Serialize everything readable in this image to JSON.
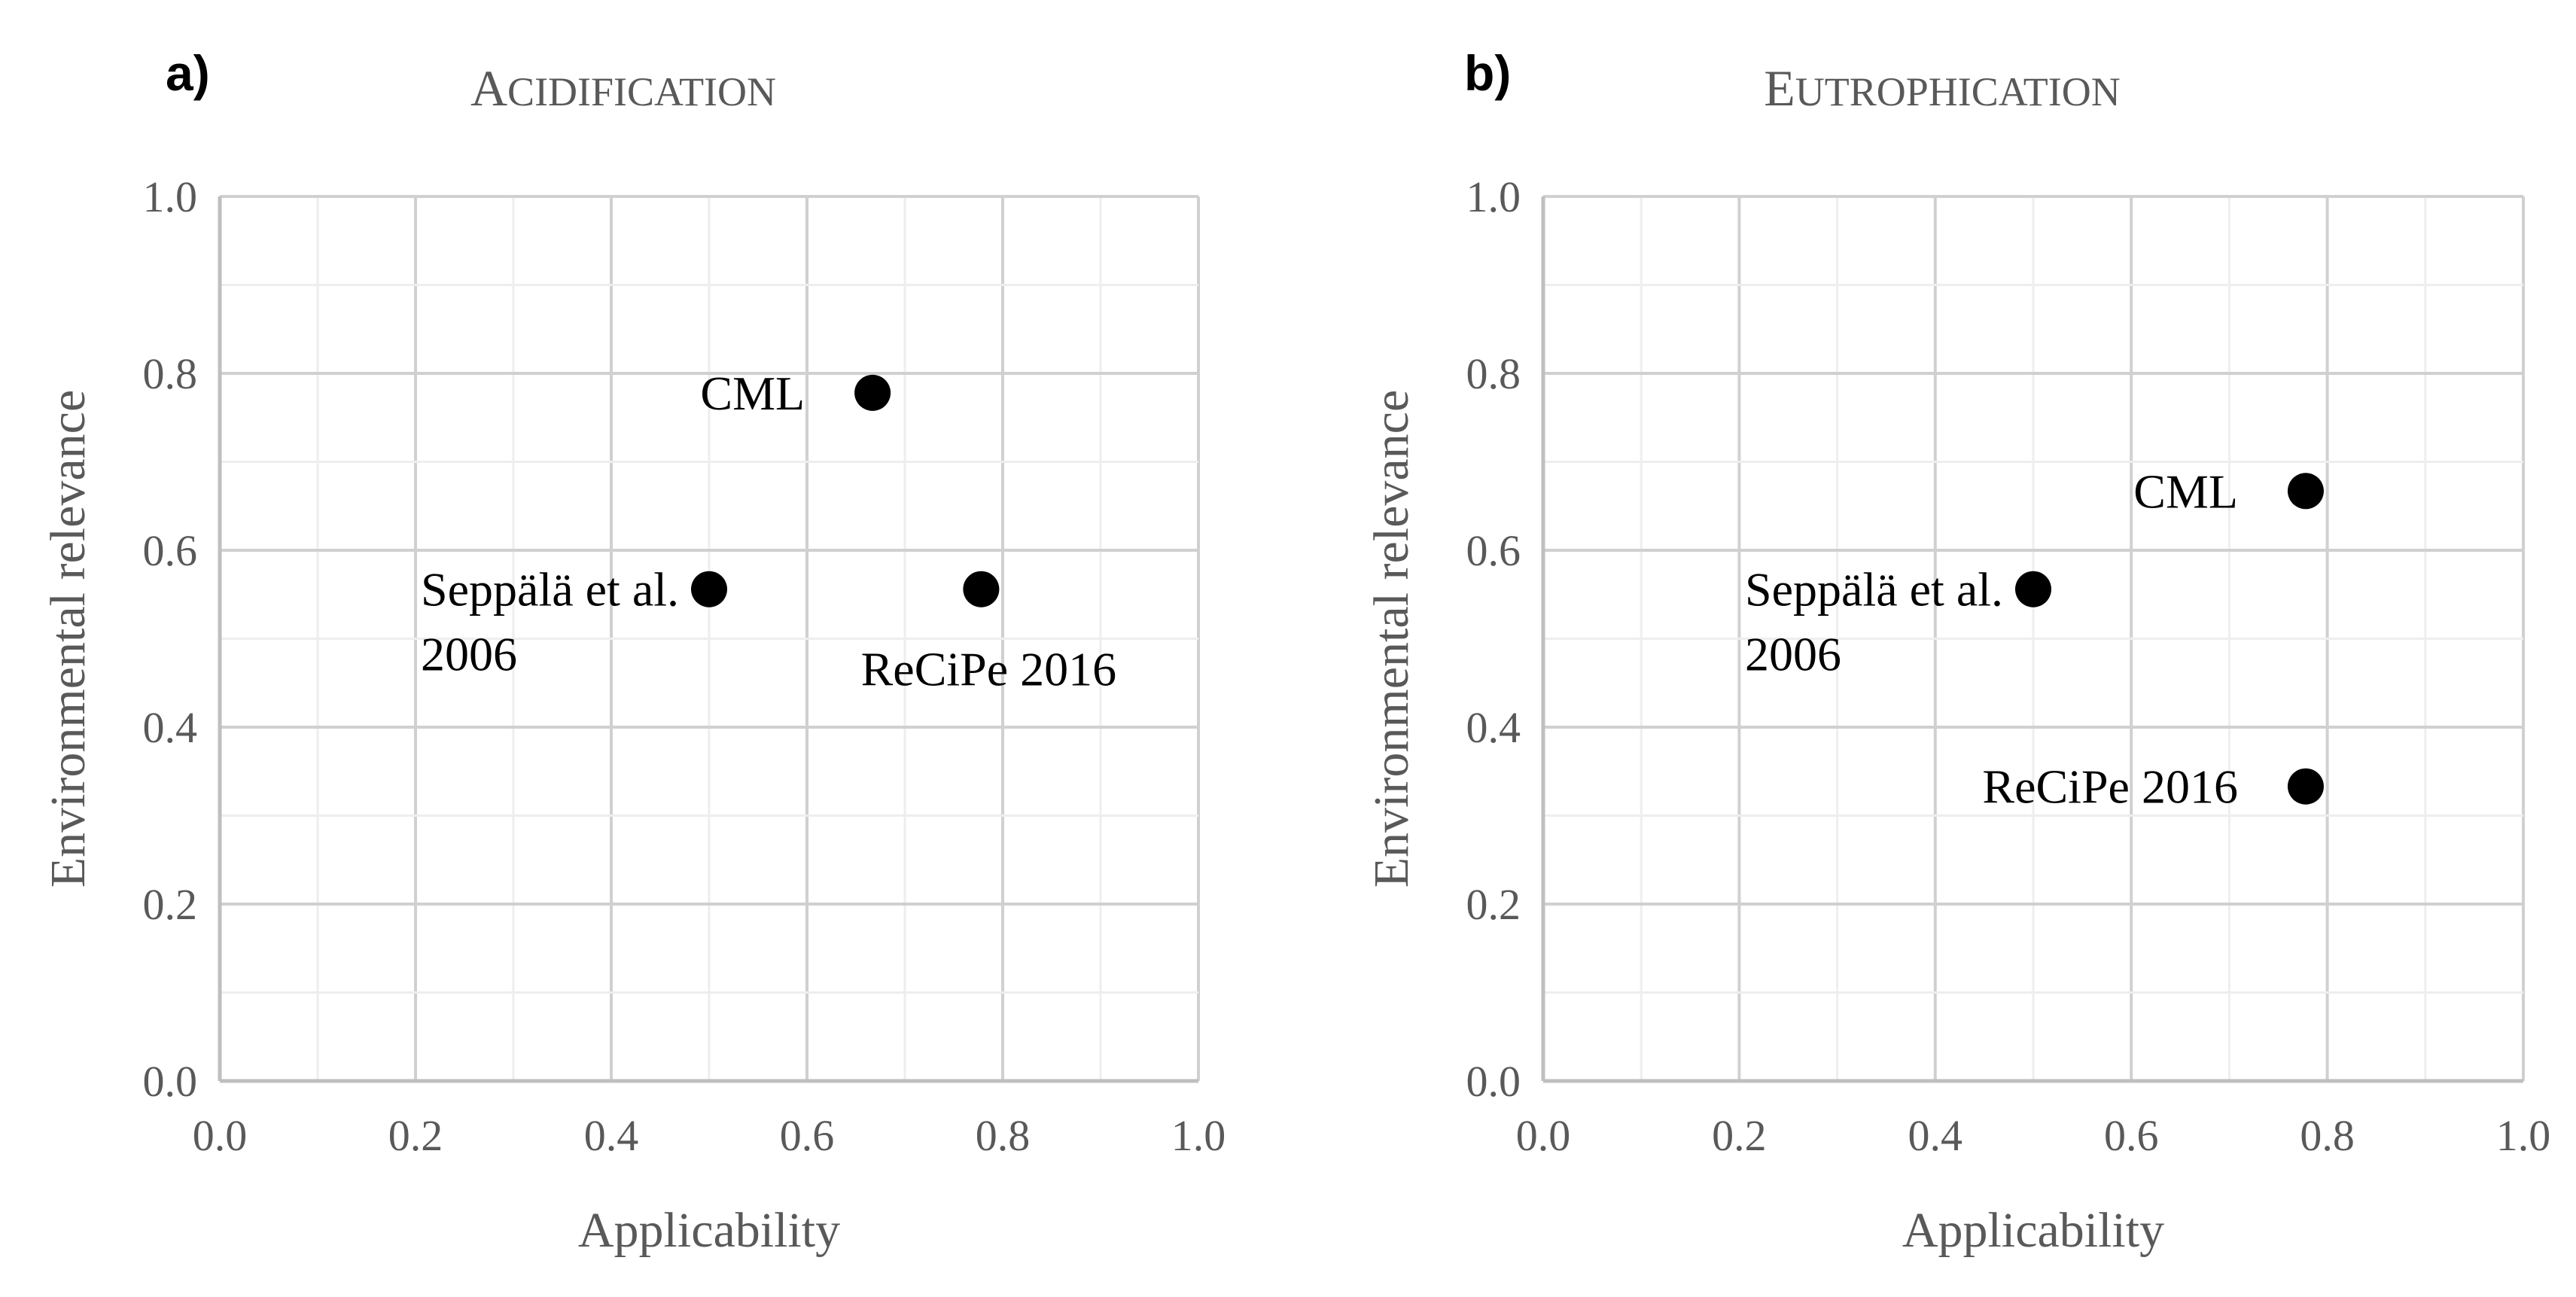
{
  "chart_data": [
    {
      "type": "scatter",
      "panel_label": "a)",
      "title": "Acidification",
      "xlabel": "Applicability",
      "ylabel": "Environmental relevance",
      "xlim": [
        0,
        1
      ],
      "ylim": [
        0,
        1
      ],
      "major_ticks": [
        "0.0",
        "0.2",
        "0.4",
        "0.6",
        "0.8",
        "1.0"
      ],
      "grid": true,
      "marker_color": "#000000",
      "points": [
        {
          "name": "CML",
          "label_lines": [
            "CML"
          ],
          "label_position": "left",
          "x": 0.667,
          "y": 0.778
        },
        {
          "name": "Seppälä et al. 2006",
          "label_lines": [
            "Seppälä et al.",
            "2006"
          ],
          "label_position": "left",
          "x": 0.5,
          "y": 0.556
        },
        {
          "name": "ReCiPe 2016",
          "label_lines": [
            "ReCiPe 2016"
          ],
          "label_position": "below",
          "x": 0.778,
          "y": 0.556
        }
      ]
    },
    {
      "type": "scatter",
      "panel_label": "b)",
      "title": "Eutrophication",
      "xlabel": "Applicability",
      "ylabel": "Environmental relevance",
      "xlim": [
        0,
        1
      ],
      "ylim": [
        0,
        1
      ],
      "major_ticks": [
        "0.0",
        "0.2",
        "0.4",
        "0.6",
        "0.8",
        "1.0"
      ],
      "grid": true,
      "marker_color": "#000000",
      "points": [
        {
          "name": "CML",
          "label_lines": [
            "CML"
          ],
          "label_position": "left",
          "x": 0.778,
          "y": 0.667
        },
        {
          "name": "Seppälä et al. 2006",
          "label_lines": [
            "Seppälä et al.",
            "2006"
          ],
          "label_position": "left",
          "x": 0.5,
          "y": 0.556
        },
        {
          "name": "ReCiPe 2016",
          "label_lines": [
            "ReCiPe 2016"
          ],
          "label_position": "left",
          "x": 0.778,
          "y": 0.333
        }
      ]
    }
  ],
  "colors": {
    "grid": "#d9d9d9",
    "text": "#595959",
    "marker": "#000000",
    "background": "#ffffff"
  }
}
